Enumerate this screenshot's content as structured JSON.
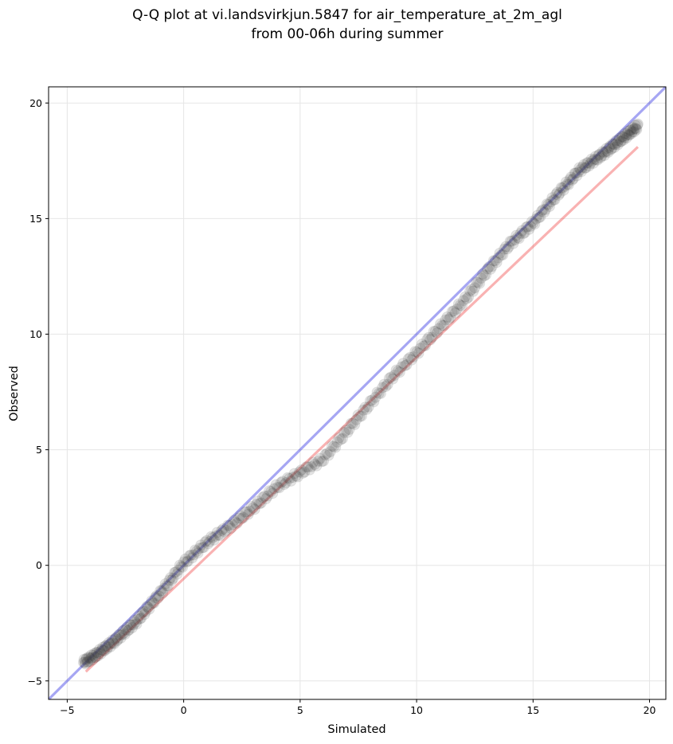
{
  "chart_data": {
    "type": "scatter",
    "title": "Q-Q plot at vi.landsvirkjun.5847 for air_temperature_at_2m_agl",
    "subtitle": "from 00-06h during summer",
    "xlabel": "Simulated",
    "ylabel": "Observed",
    "xlim": [
      -5.8,
      20.7
    ],
    "ylim": [
      -5.8,
      20.7
    ],
    "x_ticks": [
      -5,
      0,
      5,
      10,
      15,
      20
    ],
    "y_ticks": [
      -5,
      0,
      5,
      10,
      15,
      20
    ],
    "x_tick_labels": [
      "−5",
      "0",
      "5",
      "10",
      "15",
      "20"
    ],
    "y_tick_labels": [
      "−5",
      "0",
      "5",
      "10",
      "15",
      "20"
    ],
    "grid": true,
    "colors": {
      "points": "#404040",
      "identity_line": "#0000dd",
      "fit_line": "#ee2222",
      "grid": "#e6e6e6"
    },
    "identity_line": {
      "from": [
        -5.8,
        -5.8
      ],
      "to": [
        20.7,
        20.7
      ]
    },
    "fit_line": {
      "from": [
        -4.2,
        -4.6
      ],
      "to": [
        19.5,
        18.1
      ]
    },
    "quantile_anchors": {
      "x": [
        -4.3,
        -3.8,
        -3.0,
        -2.0,
        -1.0,
        0.0,
        1.0,
        2.0,
        3.0,
        4.0,
        5.0,
        6.0,
        7.0,
        8.0,
        9.0,
        10.0,
        11.0,
        12.0,
        13.0,
        14.0,
        15.0,
        16.0,
        17.0,
        18.0,
        19.5
      ],
      "y": [
        -4.2,
        -3.9,
        -3.3,
        -2.4,
        -1.2,
        0.1,
        1.0,
        1.7,
        2.5,
        3.4,
        4.0,
        4.6,
        5.8,
        7.0,
        8.2,
        9.2,
        10.3,
        11.4,
        12.7,
        13.9,
        14.8,
        16.0,
        17.1,
        17.8,
        19.0
      ]
    }
  }
}
